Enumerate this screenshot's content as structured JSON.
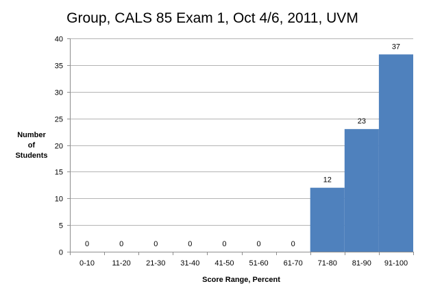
{
  "chart_data": {
    "type": "bar",
    "title": "Group, CALS 85 Exam 1, Oct 4/6, 2011, UVM",
    "xlabel": "Score Range, Percent",
    "ylabel": [
      "Number",
      "of",
      "Students"
    ],
    "categories": [
      "0-10",
      "11-20",
      "21-30",
      "31-40",
      "41-50",
      "51-60",
      "61-70",
      "71-80",
      "81-90",
      "91-100"
    ],
    "values": [
      0,
      0,
      0,
      0,
      0,
      0,
      0,
      12,
      23,
      37
    ],
    "ylim": [
      0,
      40
    ],
    "yticks": [
      0,
      5,
      10,
      15,
      20,
      25,
      30,
      35,
      40
    ],
    "grid": true,
    "legend": "none",
    "bar_color": "#4f81bd"
  }
}
